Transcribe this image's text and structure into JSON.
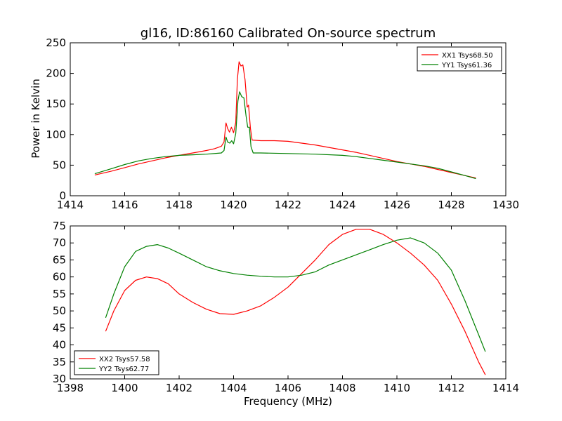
{
  "chart_data": [
    {
      "type": "line",
      "title": "gl16, ID:86160 Calibrated On-source spectrum",
      "xlabel": "",
      "ylabel": "Power in Kelvin",
      "xlim": [
        1414,
        1430
      ],
      "ylim": [
        0,
        250
      ],
      "xticks": [
        1414,
        1416,
        1418,
        1420,
        1422,
        1424,
        1426,
        1428,
        1430
      ],
      "yticks": [
        0,
        50,
        100,
        150,
        200,
        250
      ],
      "legend_position": "upper-right",
      "series": [
        {
          "name": "XX1 Tsys68.50",
          "color": "#ff0000",
          "points": [
            [
              1414.9,
              34
            ],
            [
              1415.5,
              40
            ],
            [
              1416.0,
              46
            ],
            [
              1416.5,
              52
            ],
            [
              1417.0,
              57
            ],
            [
              1417.5,
              62
            ],
            [
              1418.0,
              66
            ],
            [
              1418.5,
              70
            ],
            [
              1419.0,
              74
            ],
            [
              1419.3,
              77
            ],
            [
              1419.55,
              81
            ],
            [
              1419.65,
              88
            ],
            [
              1419.72,
              119
            ],
            [
              1419.78,
              110
            ],
            [
              1419.85,
              104
            ],
            [
              1419.92,
              112
            ],
            [
              1420.0,
              103
            ],
            [
              1420.08,
              120
            ],
            [
              1420.14,
              190
            ],
            [
              1420.2,
              219
            ],
            [
              1420.27,
              212
            ],
            [
              1420.34,
              214
            ],
            [
              1420.42,
              190
            ],
            [
              1420.5,
              145
            ],
            [
              1420.55,
              148
            ],
            [
              1420.62,
              110
            ],
            [
              1420.68,
              91
            ],
            [
              1421.0,
              90
            ],
            [
              1421.5,
              90
            ],
            [
              1422.0,
              89
            ],
            [
              1422.5,
              86
            ],
            [
              1423.0,
              83
            ],
            [
              1423.5,
              79
            ],
            [
              1424.0,
              75
            ],
            [
              1424.5,
              71
            ],
            [
              1425.0,
              66
            ],
            [
              1425.5,
              61
            ],
            [
              1426.0,
              56
            ],
            [
              1426.5,
              52
            ],
            [
              1427.0,
              48
            ],
            [
              1427.5,
              43
            ],
            [
              1428.0,
              38
            ],
            [
              1428.5,
              33
            ],
            [
              1428.9,
              29
            ]
          ]
        },
        {
          "name": "YY1 Tsys61.36",
          "color": "#008000",
          "points": [
            [
              1414.9,
              36
            ],
            [
              1415.5,
              44
            ],
            [
              1416.0,
              51
            ],
            [
              1416.5,
              57
            ],
            [
              1417.0,
              61
            ],
            [
              1417.5,
              64
            ],
            [
              1418.0,
              66
            ],
            [
              1418.5,
              67
            ],
            [
              1419.0,
              68
            ],
            [
              1419.55,
              70
            ],
            [
              1419.65,
              74
            ],
            [
              1419.72,
              96
            ],
            [
              1419.78,
              88
            ],
            [
              1419.86,
              86
            ],
            [
              1419.93,
              90
            ],
            [
              1420.0,
              85
            ],
            [
              1420.08,
              102
            ],
            [
              1420.16,
              155
            ],
            [
              1420.22,
              170
            ],
            [
              1420.3,
              162
            ],
            [
              1420.38,
              160
            ],
            [
              1420.46,
              130
            ],
            [
              1420.52,
              112
            ],
            [
              1420.58,
              112
            ],
            [
              1420.64,
              80
            ],
            [
              1420.72,
              70
            ],
            [
              1421.0,
              70
            ],
            [
              1422.0,
              69
            ],
            [
              1423.0,
              68
            ],
            [
              1424.0,
              66
            ],
            [
              1424.5,
              64
            ],
            [
              1425.0,
              61
            ],
            [
              1425.5,
              58
            ],
            [
              1426.0,
              55
            ],
            [
              1426.5,
              52
            ],
            [
              1427.0,
              49
            ],
            [
              1427.5,
              45
            ],
            [
              1428.0,
              39
            ],
            [
              1428.5,
              33
            ],
            [
              1428.9,
              28
            ]
          ]
        }
      ]
    },
    {
      "type": "line",
      "title": "",
      "xlabel": "Frequency (MHz)",
      "ylabel": "",
      "xlim": [
        1398,
        1414
      ],
      "ylim": [
        30,
        75
      ],
      "xticks": [
        1398,
        1400,
        1402,
        1404,
        1406,
        1408,
        1410,
        1412,
        1414
      ],
      "yticks": [
        30,
        35,
        40,
        45,
        50,
        55,
        60,
        65,
        70,
        75
      ],
      "legend_position": "lower-left",
      "series": [
        {
          "name": "XX2 Tsys57.58",
          "color": "#ff0000",
          "points": [
            [
              1399.3,
              44
            ],
            [
              1399.6,
              50
            ],
            [
              1400.0,
              56
            ],
            [
              1400.4,
              59
            ],
            [
              1400.8,
              60
            ],
            [
              1401.2,
              59.5
            ],
            [
              1401.6,
              58
            ],
            [
              1402.0,
              55
            ],
            [
              1402.5,
              52.5
            ],
            [
              1403.0,
              50.5
            ],
            [
              1403.5,
              49.2
            ],
            [
              1404.0,
              49
            ],
            [
              1404.5,
              50
            ],
            [
              1405.0,
              51.5
            ],
            [
              1405.5,
              54
            ],
            [
              1406.0,
              57
            ],
            [
              1406.5,
              61
            ],
            [
              1407.0,
              65
            ],
            [
              1407.5,
              69.5
            ],
            [
              1408.0,
              72.5
            ],
            [
              1408.5,
              74
            ],
            [
              1409.0,
              74
            ],
            [
              1409.5,
              72.5
            ],
            [
              1410.0,
              70
            ],
            [
              1410.5,
              67
            ],
            [
              1411.0,
              63.5
            ],
            [
              1411.5,
              59
            ],
            [
              1412.0,
              52
            ],
            [
              1412.5,
              44
            ],
            [
              1413.0,
              35
            ],
            [
              1413.25,
              31.2
            ]
          ]
        },
        {
          "name": "YY2 Tsys62.77",
          "color": "#008000",
          "points": [
            [
              1399.3,
              48
            ],
            [
              1399.6,
              55
            ],
            [
              1400.0,
              63
            ],
            [
              1400.4,
              67.5
            ],
            [
              1400.8,
              69
            ],
            [
              1401.2,
              69.5
            ],
            [
              1401.6,
              68.5
            ],
            [
              1402.0,
              67
            ],
            [
              1402.5,
              65
            ],
            [
              1403.0,
              63
            ],
            [
              1403.5,
              61.8
            ],
            [
              1404.0,
              61
            ],
            [
              1404.5,
              60.5
            ],
            [
              1405.0,
              60.2
            ],
            [
              1405.5,
              60
            ],
            [
              1406.0,
              60
            ],
            [
              1406.5,
              60.5
            ],
            [
              1407.0,
              61.5
            ],
            [
              1407.5,
              63.5
            ],
            [
              1408.0,
              65
            ],
            [
              1408.5,
              66.5
            ],
            [
              1409.0,
              68
            ],
            [
              1409.5,
              69.5
            ],
            [
              1410.0,
              70.8
            ],
            [
              1410.5,
              71.5
            ],
            [
              1411.0,
              70
            ],
            [
              1411.5,
              67
            ],
            [
              1412.0,
              62
            ],
            [
              1412.5,
              53
            ],
            [
              1413.0,
              43
            ],
            [
              1413.25,
              38
            ]
          ]
        }
      ]
    }
  ]
}
